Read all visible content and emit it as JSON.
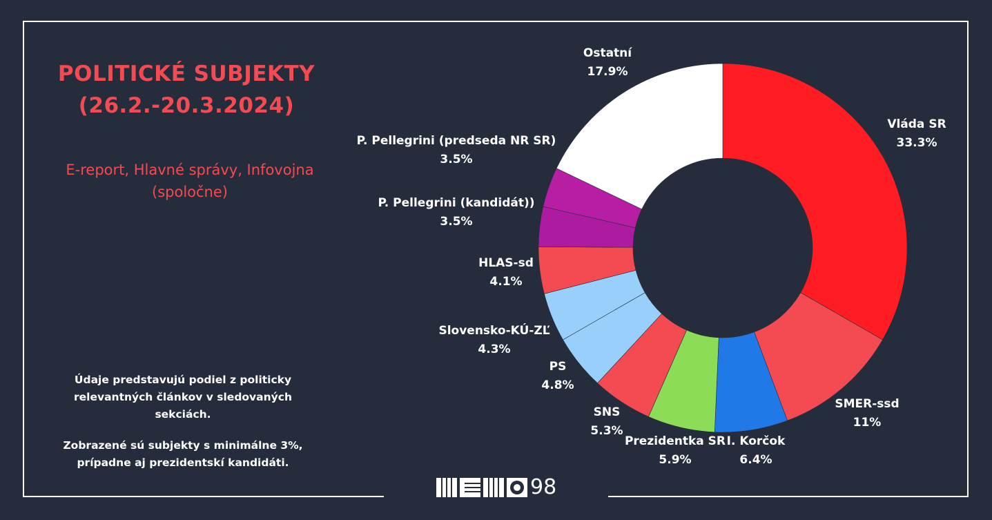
{
  "header": {
    "title_line1": "POLITICKÉ SUBJEKTY",
    "title_line2": "(26.2.-20.3.2024)",
    "source_line1": "E-report, Hlavné správy, Infovojna",
    "source_line2": "(spoločne)"
  },
  "notes": {
    "note1_line1": "Údaje predstavujú podiel z politicky",
    "note1_line2": "relevantných článkov v sledovaných",
    "note1_line3": "sekciách.",
    "note2_line1": "Zobrazené sú subjekty s minimálne 3%,",
    "note2_line2": "prípadne aj prezidentskí kandidáti."
  },
  "logo": {
    "text": "98"
  },
  "colors": {
    "background": "#252d3d",
    "accent": "#f44a52",
    "text": "#ffffff"
  },
  "chart_data": {
    "type": "pie",
    "donut": true,
    "slices": [
      {
        "label": "Vláda SR",
        "value_label": "33.3%",
        "value": 33.3,
        "color": "#ff1c22"
      },
      {
        "label": "SMER-ssd",
        "value_label": "11%",
        "value": 11.0,
        "color": "#f44a52"
      },
      {
        "label": "I. Korčok",
        "value_label": "6.4%",
        "value": 6.4,
        "color": "#2179e8"
      },
      {
        "label": "Prezidentka SR",
        "value_label": "5.9%",
        "value": 5.9,
        "color": "#8cdc58"
      },
      {
        "label": "SNS",
        "value_label": "5.3%",
        "value": 5.3,
        "color": "#f44a52"
      },
      {
        "label": "PS",
        "value_label": "4.8%",
        "value": 4.8,
        "color": "#99cffb"
      },
      {
        "label": "Slovensko-KÚ-ZĽ",
        "value_label": "4.3%",
        "value": 4.3,
        "color": "#99cffb"
      },
      {
        "label": "HLAS-sd",
        "value_label": "4.1%",
        "value": 4.1,
        "color": "#f44a52"
      },
      {
        "label": "P. Pellegrini (kandidát))",
        "value_label": "3.5%",
        "value": 3.5,
        "color": "#ad1ba1"
      },
      {
        "label": "P. Pellegrini (predseda NR SR)",
        "value_label": "3.5%",
        "value": 3.5,
        "color": "#b81ea3"
      },
      {
        "label": "Ostatní",
        "value_label": "17.9%",
        "value": 17.9,
        "color": "#ffffff"
      }
    ]
  }
}
